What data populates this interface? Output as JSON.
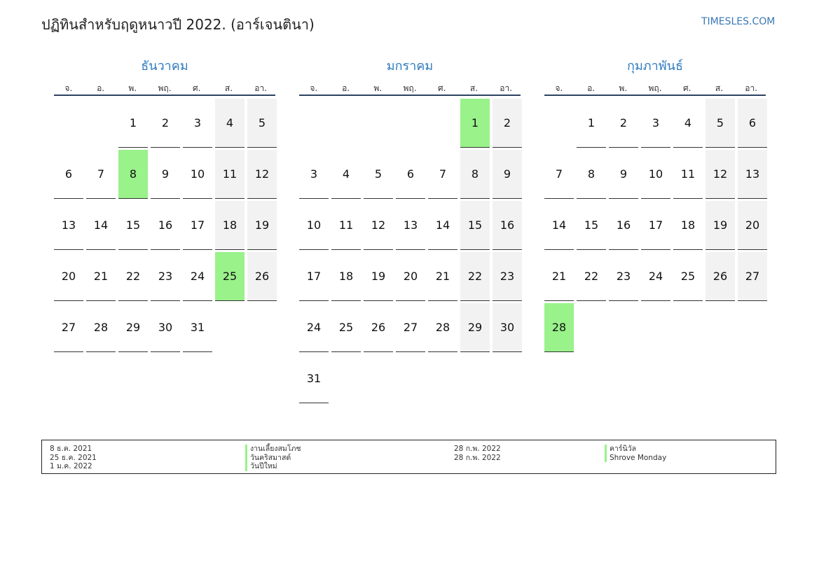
{
  "header": {
    "title": "ปฏิทินสำหรับฤดูหนาวปี 2022. (อาร์เจนตินา)",
    "site": "TIMESLES.COM"
  },
  "colors": {
    "accent": "#2f7cc0",
    "holiday": "#99f28a",
    "weekend": "#f2f2f2",
    "rule": "#2d4261"
  },
  "weekdays": [
    "จ.",
    "อ.",
    "พ.",
    "พฤ.",
    "ศ.",
    "ส.",
    "อา."
  ],
  "months": [
    {
      "name": "ธันวาคม",
      "start_offset": 2,
      "days": 31,
      "holidays": [
        8,
        25
      ]
    },
    {
      "name": "มกราคม",
      "start_offset": 5,
      "days": 31,
      "holidays": [
        1
      ]
    },
    {
      "name": "กุมภาพันธ์",
      "start_offset": 1,
      "days": 28,
      "holidays": [
        28
      ]
    }
  ],
  "legend": {
    "left_dates": [
      "8 ธ.ค. 2021",
      "25 ธ.ค. 2021",
      "1 ม.ค. 2022"
    ],
    "left_names": [
      "งานเลี้ยงสมโภช",
      "วันคริสมาสต์",
      "วันปีใหม่"
    ],
    "right_dates": [
      "28 ก.พ. 2022",
      "28 ก.พ. 2022"
    ],
    "right_names": [
      "คาร์นิวัล",
      "Shrove Monday"
    ]
  }
}
